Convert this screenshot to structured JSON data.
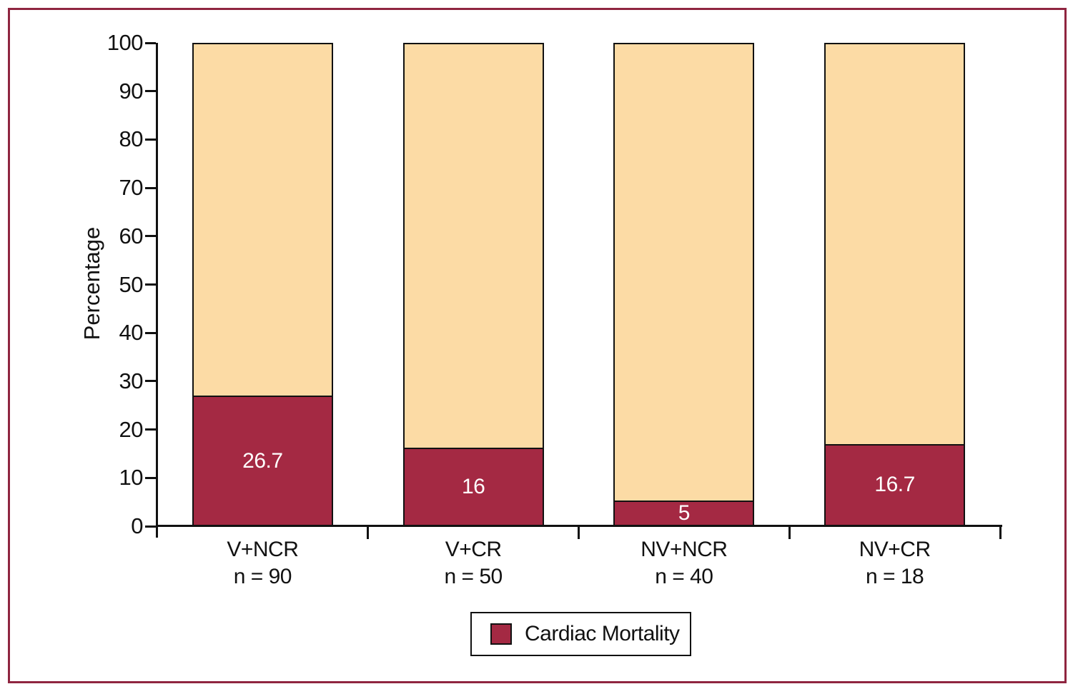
{
  "figure": {
    "background": "#ffffff",
    "frame_color": "#8f2540",
    "axis_color": "#111111",
    "value_label_color": "#ffffff"
  },
  "chart_data": {
    "type": "bar",
    "variant": "stacked-percentage",
    "title": "",
    "xlabel": "",
    "ylabel": "Percentage",
    "ylim": [
      0,
      100
    ],
    "ytick_step": 10,
    "yticks": [
      0,
      10,
      20,
      30,
      40,
      50,
      60,
      70,
      80,
      90,
      100
    ],
    "grid": false,
    "legend_position": "bottom-center",
    "categories": [
      "V+NCR",
      "V+CR",
      "NV+NCR",
      "NV+CR"
    ],
    "category_sublabels": [
      "n = 90",
      "n = 50",
      "n = 40",
      "n = 18"
    ],
    "series": [
      {
        "name": "Cardiac Mortality",
        "color": "#a42943",
        "values": [
          26.7,
          16,
          5,
          16.7
        ],
        "value_labels": [
          "26.7",
          "16",
          "5",
          "16.7"
        ]
      }
    ],
    "complement_fill": {
      "color": "#fcdba5",
      "values": [
        73.3,
        84,
        95,
        83.3
      ]
    },
    "legend": [
      {
        "label": "Cardiac Mortality",
        "color": "#a42943"
      }
    ]
  }
}
